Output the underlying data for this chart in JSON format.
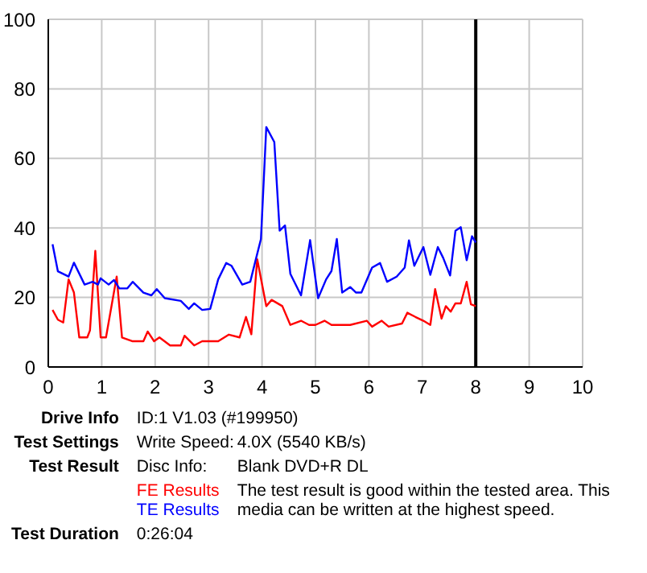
{
  "chart_data": {
    "type": "line",
    "xlim": [
      0,
      10
    ],
    "xticks": [
      0,
      1,
      2,
      3,
      4,
      5,
      6,
      7,
      8,
      9,
      10
    ],
    "ylim": [
      0,
      100
    ],
    "yticks": [
      0,
      20,
      40,
      60,
      80,
      100
    ],
    "grid": true,
    "legend": "bottom",
    "marker": "none",
    "line_style": "solid",
    "ref_lines": [
      {
        "axis": "x",
        "value": 8,
        "color": "#000000"
      }
    ],
    "series": [
      {
        "name": "FE Results",
        "color": "#ff0000",
        "x": [
          0.08,
          0.18,
          0.28,
          0.38,
          0.48,
          0.58,
          0.73,
          0.78,
          0.88,
          0.98,
          1.08,
          1.28,
          1.38,
          1.58,
          1.78,
          1.86,
          1.98,
          2.08,
          2.28,
          2.48,
          2.55,
          2.73,
          2.88,
          3.18,
          3.38,
          3.58,
          3.7,
          3.8,
          3.91,
          4.08,
          4.18,
          4.38,
          4.53,
          4.73,
          4.88,
          5.0,
          5.17,
          5.3,
          5.65,
          5.96,
          6.06,
          6.24,
          6.37,
          6.62,
          6.72,
          6.87,
          7.02,
          7.15,
          7.24,
          7.36,
          7.44,
          7.53,
          7.62,
          7.72,
          7.83,
          7.91,
          8.0
        ],
        "values": [
          16.4,
          13.6,
          12.8,
          25.2,
          21.4,
          8.5,
          8.5,
          10.5,
          33.4,
          8.5,
          8.5,
          26,
          8.5,
          7.4,
          7.4,
          10.2,
          7.4,
          8.5,
          6.2,
          6.2,
          9,
          6.2,
          7.4,
          7.4,
          9.3,
          8.5,
          14.4,
          9.4,
          31,
          17.5,
          19.3,
          17.5,
          12.1,
          13.3,
          12.1,
          12.1,
          13.3,
          12.1,
          12.1,
          13.3,
          11.6,
          13.3,
          11.6,
          12.5,
          15.6,
          14.4,
          13.3,
          12.1,
          22.4,
          13.9,
          17.5,
          15.9,
          18.3,
          18.3,
          24.5,
          18,
          17.5
        ]
      },
      {
        "name": "TE Results",
        "color": "#0000ff",
        "x": [
          0.08,
          0.18,
          0.38,
          0.48,
          0.68,
          0.83,
          0.93,
          0.98,
          1.13,
          1.23,
          1.33,
          1.48,
          1.58,
          1.78,
          1.93,
          2.03,
          2.18,
          2.48,
          2.63,
          2.73,
          2.88,
          3.03,
          3.18,
          3.33,
          3.43,
          3.63,
          3.78,
          3.88,
          3.98,
          4.08,
          4.23,
          4.33,
          4.43,
          4.53,
          4.73,
          4.9,
          5.05,
          5.2,
          5.3,
          5.4,
          5.5,
          5.65,
          5.76,
          5.86,
          6.06,
          6.21,
          6.34,
          6.52,
          6.67,
          6.75,
          6.85,
          7.02,
          7.15,
          7.29,
          7.39,
          7.52,
          7.62,
          7.72,
          7.83,
          7.93,
          8.0
        ],
        "values": [
          35.3,
          27.5,
          26,
          30,
          23.7,
          24.5,
          23.7,
          25.5,
          23.7,
          25,
          22.6,
          22.6,
          24.5,
          21.4,
          20.6,
          22.4,
          19.8,
          19,
          16.7,
          18.3,
          16.4,
          16.7,
          25.2,
          29.9,
          29.1,
          23.7,
          24.5,
          30.7,
          36.8,
          69,
          64.7,
          39.2,
          40.7,
          26.8,
          20.6,
          36.5,
          19.8,
          25.2,
          27.6,
          36.8,
          21.4,
          23,
          21.4,
          21.4,
          28.6,
          29.9,
          24.5,
          26,
          28.6,
          36.4,
          29.1,
          34.5,
          26.5,
          34.5,
          31.4,
          26.3,
          39.2,
          40.2,
          30.7,
          37.6,
          35.8
        ]
      }
    ],
    "annotations": [
      "Drive Info",
      "ID:1 V1.03 (#199950)",
      "Test Settings",
      "Write Speed:",
      "4.0X (5540 KB/s)",
      "Test Result",
      "Disc Info:",
      "Blank DVD+R DL",
      "The test result is good within the tested area. This media can be written at the highest speed.",
      "Test Duration",
      "0:26:04"
    ]
  }
}
